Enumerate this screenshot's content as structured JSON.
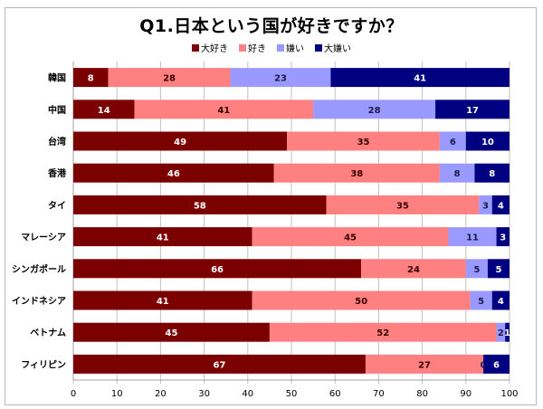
{
  "chart_data": {
    "type": "bar",
    "orientation": "horizontal",
    "stacked": true,
    "title": "Q1.日本という国が好きですか？",
    "xlabel": "",
    "ylabel": "",
    "xlim": [
      0,
      100
    ],
    "xticks": [
      "0",
      "10",
      "20",
      "30",
      "40",
      "50",
      "60",
      "70",
      "80",
      "90",
      "100"
    ],
    "grid": true,
    "legend_position": "top",
    "categories": [
      "韓国",
      "中国",
      "台湾",
      "香港",
      "タイ",
      "マレーシア",
      "シンガポール",
      "インドネシア",
      "ベトナム",
      "フィリピン"
    ],
    "series": [
      {
        "name": "大好き",
        "color": "#7b0000",
        "label_color": "#ffffff",
        "values": [
          8,
          14,
          49,
          46,
          58,
          41,
          66,
          41,
          45,
          67
        ]
      },
      {
        "name": "好き",
        "color": "#ff8080",
        "label_color": "#3a0000",
        "values": [
          28,
          41,
          35,
          38,
          35,
          45,
          24,
          50,
          52,
          27
        ]
      },
      {
        "name": "嫌い",
        "color": "#9999ff",
        "label_color": "#1a1a4a",
        "values": [
          23,
          28,
          6,
          8,
          3,
          11,
          5,
          5,
          2,
          0
        ]
      },
      {
        "name": "大嫌い",
        "color": "#000080",
        "label_color": "#ffffff",
        "values": [
          41,
          17,
          10,
          8,
          4,
          3,
          5,
          4,
          1,
          6
        ]
      }
    ]
  }
}
